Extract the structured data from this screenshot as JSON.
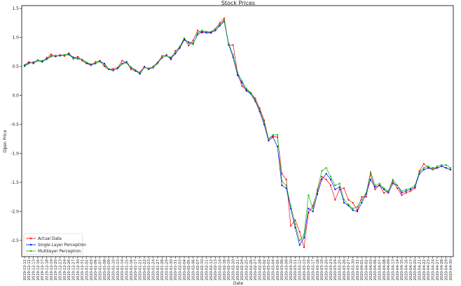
{
  "chart_data": {
    "type": "line",
    "title": "Stock Prices",
    "xlabel": "Date",
    "ylabel": "Open Price",
    "ylim": [
      -2.78,
      1.55
    ],
    "yticks": [
      1.5,
      1.0,
      0.5,
      0.0,
      -0.5,
      -1.0,
      -1.5,
      -2.0,
      -2.5
    ],
    "ytick_labels": [
      "1.5",
      "1.0",
      "0.5",
      "0.0",
      "-0.5",
      "-1.0",
      "-1.5",
      "-2.0",
      "-2.5"
    ],
    "legend_position": "lower-left",
    "grid": false,
    "x": [
      "2019-12-11",
      "2019-12-12",
      "2019-12-13",
      "2019-12-16",
      "2019-12-17",
      "2019-12-18",
      "2019-12-19",
      "2019-12-20",
      "2019-12-23",
      "2019-12-24",
      "2019-12-26",
      "2019-12-27",
      "2019-12-30",
      "2019-12-31",
      "2020-01-02",
      "2020-01-03",
      "2020-01-06",
      "2020-01-07",
      "2020-01-08",
      "2020-01-09",
      "2020-01-10",
      "2020-01-13",
      "2020-01-14",
      "2020-01-15",
      "2020-01-16",
      "2020-01-17",
      "2020-01-21",
      "2020-01-22",
      "2020-01-23",
      "2020-01-24",
      "2020-01-27",
      "2020-01-28",
      "2020-01-29",
      "2020-01-30",
      "2020-01-31",
      "2020-02-03",
      "2020-02-04",
      "2020-02-05",
      "2020-02-06",
      "2020-02-07",
      "2020-02-10",
      "2020-02-11",
      "2020-02-12",
      "2020-02-13",
      "2020-02-14",
      "2020-02-18",
      "2020-02-19",
      "2020-02-20",
      "2020-02-21",
      "2020-02-24",
      "2020-02-25",
      "2020-02-26",
      "2020-02-27",
      "2020-02-28",
      "2020-03-02",
      "2020-03-03",
      "2020-03-04",
      "2020-03-05",
      "2020-03-06",
      "2020-03-09",
      "2020-03-10",
      "2020-03-11",
      "2020-03-12",
      "2020-03-13",
      "2020-03-16",
      "2020-03-17",
      "2020-03-18",
      "2020-03-19",
      "2020-03-20",
      "2020-03-23",
      "2020-03-24",
      "2020-03-25",
      "2020-03-26",
      "2020-03-27",
      "2020-03-30",
      "2020-03-31",
      "2020-04-01",
      "2020-04-02",
      "2020-04-03",
      "2020-04-06",
      "2020-04-07",
      "2020-04-08",
      "2020-04-09",
      "2020-04-13",
      "2020-04-14",
      "2020-04-15",
      "2020-04-16",
      "2020-04-17",
      "2020-04-20",
      "2020-04-21",
      "2020-04-22",
      "2020-04-23",
      "2020-04-24",
      "2020-04-27",
      "2020-04-28",
      "2020-04-29",
      "2020-04-30"
    ],
    "series": [
      {
        "name": "Actual Data",
        "color": "#ff0000",
        "marker": "circle",
        "values": [
          0.52,
          0.58,
          0.55,
          0.6,
          0.58,
          0.65,
          0.71,
          0.67,
          0.7,
          0.68,
          0.73,
          0.63,
          0.67,
          0.6,
          0.55,
          0.52,
          0.58,
          0.6,
          0.5,
          0.45,
          0.46,
          0.48,
          0.6,
          0.57,
          0.45,
          0.42,
          0.4,
          0.5,
          0.45,
          0.5,
          0.57,
          0.68,
          0.7,
          0.62,
          0.77,
          0.82,
          0.98,
          0.86,
          0.95,
          1.12,
          1.08,
          1.1,
          1.08,
          1.15,
          1.25,
          1.33,
          0.87,
          0.87,
          0.4,
          0.16,
          0.1,
          0.04,
          -0.05,
          -0.22,
          -0.43,
          -0.75,
          -0.7,
          -0.72,
          -1.35,
          -1.45,
          -2.25,
          -2.15,
          -2.35,
          -2.62,
          -2.02,
          -1.9,
          -1.65,
          -1.4,
          -1.45,
          -1.55,
          -1.8,
          -1.62,
          -1.6,
          -1.8,
          -1.85,
          -1.98,
          -1.75,
          -1.75,
          -1.35,
          -1.62,
          -1.55,
          -1.68,
          -1.65,
          -1.48,
          -1.6,
          -1.72,
          -1.68,
          -1.65,
          -1.6,
          -1.3,
          -1.18,
          -1.25,
          -1.25,
          -1.25,
          -1.22,
          -1.25,
          -1.28
        ]
      },
      {
        "name": "Single Layer Perceptron",
        "color": "#0000ff",
        "marker": "circle",
        "values": [
          0.52,
          0.56,
          0.57,
          0.61,
          0.58,
          0.63,
          0.68,
          0.68,
          0.69,
          0.7,
          0.71,
          0.66,
          0.64,
          0.62,
          0.56,
          0.53,
          0.55,
          0.59,
          0.55,
          0.45,
          0.43,
          0.47,
          0.55,
          0.58,
          0.48,
          0.43,
          0.37,
          0.49,
          0.46,
          0.48,
          0.56,
          0.65,
          0.69,
          0.64,
          0.72,
          0.82,
          0.96,
          0.92,
          0.9,
          1.05,
          1.1,
          1.08,
          1.08,
          1.12,
          1.2,
          1.28,
          0.88,
          0.66,
          0.35,
          0.22,
          0.08,
          0.03,
          -0.1,
          -0.28,
          -0.5,
          -0.78,
          -0.72,
          -0.88,
          -1.55,
          -1.6,
          -1.95,
          -2.28,
          -2.58,
          -2.45,
          -1.95,
          -2.0,
          -1.7,
          -1.45,
          -1.35,
          -1.45,
          -1.62,
          -1.58,
          -1.85,
          -1.9,
          -1.98,
          -2.0,
          -1.85,
          -1.7,
          -1.45,
          -1.58,
          -1.55,
          -1.62,
          -1.68,
          -1.52,
          -1.55,
          -1.68,
          -1.65,
          -1.62,
          -1.58,
          -1.35,
          -1.28,
          -1.25,
          -1.28,
          -1.25,
          -1.22,
          -1.25,
          -1.28
        ]
      },
      {
        "name": "Multilayer Perceptron",
        "color": "#00bb00",
        "marker": "circle",
        "values": [
          0.5,
          0.55,
          0.58,
          0.6,
          0.6,
          0.62,
          0.67,
          0.69,
          0.68,
          0.7,
          0.7,
          0.64,
          0.63,
          0.62,
          0.57,
          0.54,
          0.56,
          0.58,
          0.52,
          0.46,
          0.44,
          0.46,
          0.54,
          0.56,
          0.49,
          0.44,
          0.39,
          0.48,
          0.47,
          0.49,
          0.55,
          0.66,
          0.68,
          0.66,
          0.75,
          0.85,
          0.99,
          0.9,
          0.88,
          1.08,
          1.12,
          1.1,
          1.1,
          1.15,
          1.22,
          1.3,
          0.9,
          0.7,
          0.4,
          0.25,
          0.12,
          0.05,
          -0.08,
          -0.25,
          -0.46,
          -0.75,
          -0.68,
          -0.68,
          -1.48,
          -1.55,
          -1.9,
          -2.22,
          -2.5,
          -2.4,
          -1.72,
          -1.95,
          -1.62,
          -1.3,
          -1.25,
          -1.4,
          -1.55,
          -1.52,
          -1.8,
          -1.88,
          -1.95,
          -1.92,
          -1.8,
          -1.68,
          -1.32,
          -1.55,
          -1.52,
          -1.6,
          -1.65,
          -1.45,
          -1.55,
          -1.65,
          -1.62,
          -1.6,
          -1.55,
          -1.32,
          -1.25,
          -1.22,
          -1.28,
          -1.22,
          -1.2,
          -1.2,
          -1.25
        ]
      }
    ]
  }
}
